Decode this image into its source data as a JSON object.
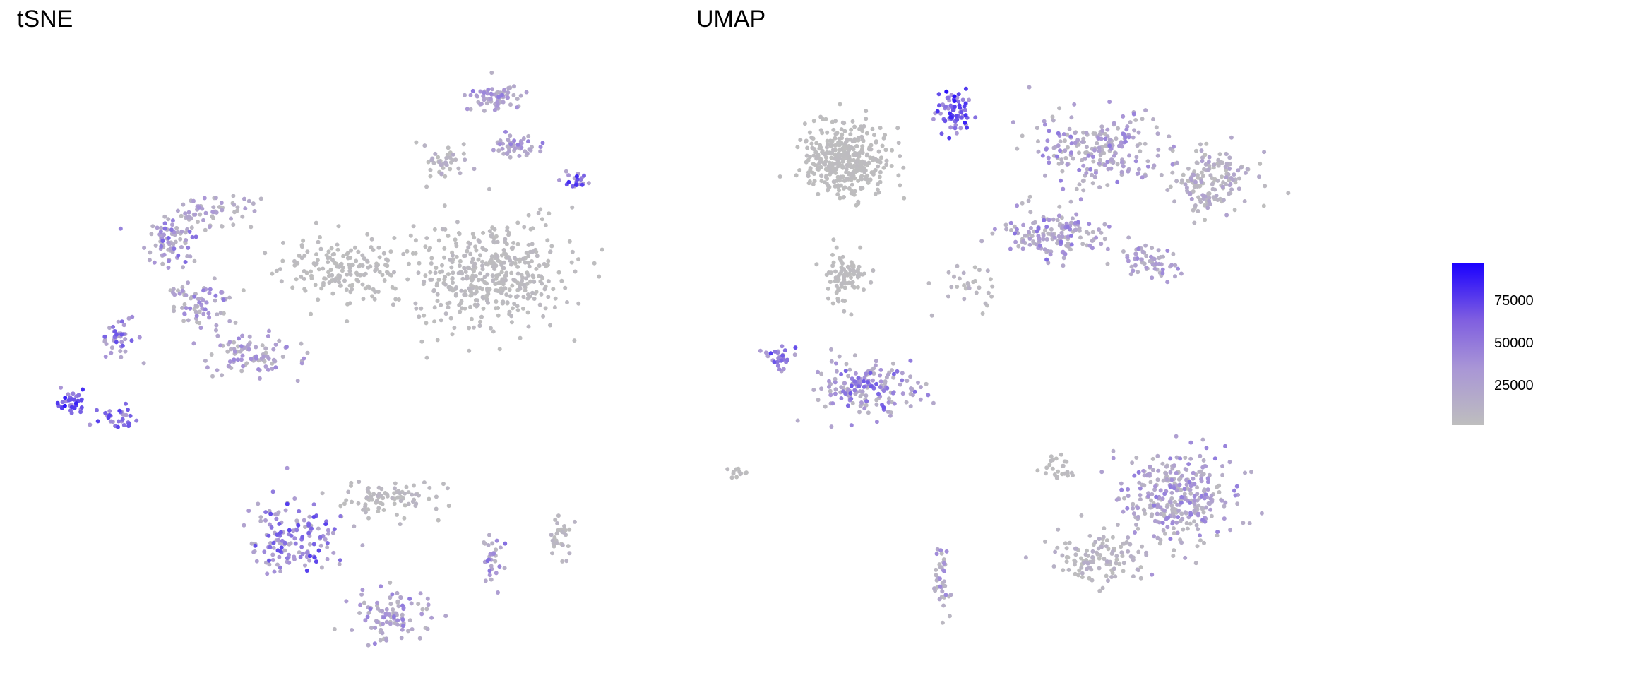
{
  "panels": [
    {
      "id": "tsne",
      "title": "tSNE"
    },
    {
      "id": "umap",
      "title": "UMAP"
    }
  ],
  "legend": {
    "min": 0,
    "max": 95000,
    "ticks": [
      {
        "value": 25000,
        "label": "25000"
      },
      {
        "value": 50000,
        "label": "50000"
      },
      {
        "value": 75000,
        "label": "75000"
      }
    ],
    "low_color": "#bebebe",
    "high_color": "#1a00ff"
  },
  "chart_data": [
    {
      "type": "scatter",
      "title": "tSNE",
      "xlabel": "",
      "ylabel": "",
      "grid": false,
      "color_scale": {
        "low": "#bebebe",
        "high": "#1a00ff",
        "range": [
          0,
          95000
        ]
      },
      "clusters": [
        {
          "center": [
            0.34,
            0.72
          ],
          "spread": [
            0.07,
            0.05
          ],
          "n": 90,
          "value_range": [
            2000,
            40000
          ]
        },
        {
          "center": [
            0.26,
            0.6
          ],
          "spread": [
            0.05,
            0.06
          ],
          "n": 70,
          "value_range": [
            2000,
            45000
          ]
        },
        {
          "center": [
            0.2,
            0.44
          ],
          "spread": [
            0.04,
            0.06
          ],
          "n": 80,
          "value_range": [
            5000,
            55000
          ]
        },
        {
          "center": [
            0.28,
            0.36
          ],
          "spread": [
            0.06,
            0.04
          ],
          "n": 60,
          "value_range": [
            2000,
            35000
          ]
        },
        {
          "center": [
            0.12,
            0.68
          ],
          "spread": [
            0.03,
            0.04
          ],
          "n": 40,
          "value_range": [
            15000,
            70000
          ]
        },
        {
          "center": [
            0.04,
            0.84
          ],
          "spread": [
            0.02,
            0.03
          ],
          "n": 35,
          "value_range": [
            30000,
            90000
          ]
        },
        {
          "center": [
            0.12,
            0.88
          ],
          "spread": [
            0.03,
            0.02
          ],
          "n": 30,
          "value_range": [
            20000,
            70000
          ]
        },
        {
          "center": [
            0.5,
            0.5
          ],
          "spread": [
            0.1,
            0.08
          ],
          "n": 170,
          "value_range": [
            0,
            3000
          ]
        },
        {
          "center": [
            0.75,
            0.52
          ],
          "spread": [
            0.12,
            0.12
          ],
          "n": 420,
          "value_range": [
            0,
            5000
          ]
        },
        {
          "center": [
            0.76,
            0.08
          ],
          "spread": [
            0.04,
            0.03
          ],
          "n": 70,
          "value_range": [
            10000,
            45000
          ]
        },
        {
          "center": [
            0.79,
            0.2
          ],
          "spread": [
            0.04,
            0.03
          ],
          "n": 50,
          "value_range": [
            10000,
            45000
          ]
        },
        {
          "center": [
            0.67,
            0.24
          ],
          "spread": [
            0.04,
            0.05
          ],
          "n": 40,
          "value_range": [
            0,
            20000
          ]
        },
        {
          "center": [
            0.9,
            0.28
          ],
          "spread": [
            0.02,
            0.02
          ],
          "n": 22,
          "value_range": [
            20000,
            80000
          ]
        },
        {
          "center": [
            0.42,
            1.18
          ],
          "spread": [
            0.07,
            0.08
          ],
          "n": 150,
          "value_range": [
            10000,
            70000
          ]
        },
        {
          "center": [
            0.58,
            1.38
          ],
          "spread": [
            0.06,
            0.06
          ],
          "n": 100,
          "value_range": [
            3000,
            45000
          ]
        },
        {
          "center": [
            0.58,
            1.08
          ],
          "spread": [
            0.07,
            0.04
          ],
          "n": 90,
          "value_range": [
            0,
            8000
          ]
        },
        {
          "center": [
            0.76,
            1.22
          ],
          "spread": [
            0.02,
            0.06
          ],
          "n": 30,
          "value_range": [
            5000,
            50000
          ]
        },
        {
          "center": [
            0.87,
            1.18
          ],
          "spread": [
            0.02,
            0.05
          ],
          "n": 30,
          "value_range": [
            0,
            10000
          ]
        }
      ]
    },
    {
      "type": "scatter",
      "title": "UMAP",
      "xlabel": "",
      "ylabel": "",
      "grid": false,
      "color_scale": {
        "low": "#bebebe",
        "high": "#1a00ff",
        "range": [
          0,
          95000
        ]
      },
      "clusters": [
        {
          "center": [
            0.21,
            0.16
          ],
          "spread": [
            0.07,
            0.09
          ],
          "n": 380,
          "value_range": [
            0,
            2500
          ]
        },
        {
          "center": [
            0.21,
            0.48
          ],
          "spread": [
            0.03,
            0.08
          ],
          "n": 90,
          "value_range": [
            0,
            3000
          ]
        },
        {
          "center": [
            0.25,
            0.78
          ],
          "spread": [
            0.09,
            0.07
          ],
          "n": 170,
          "value_range": [
            5000,
            60000
          ]
        },
        {
          "center": [
            0.09,
            0.7
          ],
          "spread": [
            0.02,
            0.04
          ],
          "n": 30,
          "value_range": [
            20000,
            70000
          ]
        },
        {
          "center": [
            0.42,
            0.5
          ],
          "spread": [
            0.05,
            0.06
          ],
          "n": 30,
          "value_range": [
            0,
            12000
          ]
        },
        {
          "center": [
            0.4,
            0.04
          ],
          "spread": [
            0.03,
            0.05
          ],
          "n": 70,
          "value_range": [
            30000,
            92000
          ]
        },
        {
          "center": [
            0.66,
            0.14
          ],
          "spread": [
            0.1,
            0.08
          ],
          "n": 220,
          "value_range": [
            3000,
            45000
          ]
        },
        {
          "center": [
            0.58,
            0.36
          ],
          "spread": [
            0.08,
            0.06
          ],
          "n": 150,
          "value_range": [
            5000,
            50000
          ]
        },
        {
          "center": [
            0.86,
            0.22
          ],
          "spread": [
            0.08,
            0.08
          ],
          "n": 160,
          "value_range": [
            0,
            25000
          ]
        },
        {
          "center": [
            0.75,
            0.44
          ],
          "spread": [
            0.05,
            0.04
          ],
          "n": 60,
          "value_range": [
            8000,
            40000
          ]
        },
        {
          "center": [
            0.8,
            1.08
          ],
          "spread": [
            0.1,
            0.11
          ],
          "n": 320,
          "value_range": [
            3000,
            45000
          ]
        },
        {
          "center": [
            0.66,
            1.24
          ],
          "spread": [
            0.08,
            0.06
          ],
          "n": 120,
          "value_range": [
            0,
            15000
          ]
        },
        {
          "center": [
            0.58,
            1.0
          ],
          "spread": [
            0.03,
            0.03
          ],
          "n": 25,
          "value_range": [
            0,
            4000
          ]
        },
        {
          "center": [
            0.38,
            1.3
          ],
          "spread": [
            0.012,
            0.08
          ],
          "n": 40,
          "value_range": [
            3000,
            45000
          ]
        },
        {
          "center": [
            0.02,
            1.01
          ],
          "spread": [
            0.015,
            0.01
          ],
          "n": 12,
          "value_range": [
            0,
            5000
          ]
        }
      ]
    }
  ]
}
